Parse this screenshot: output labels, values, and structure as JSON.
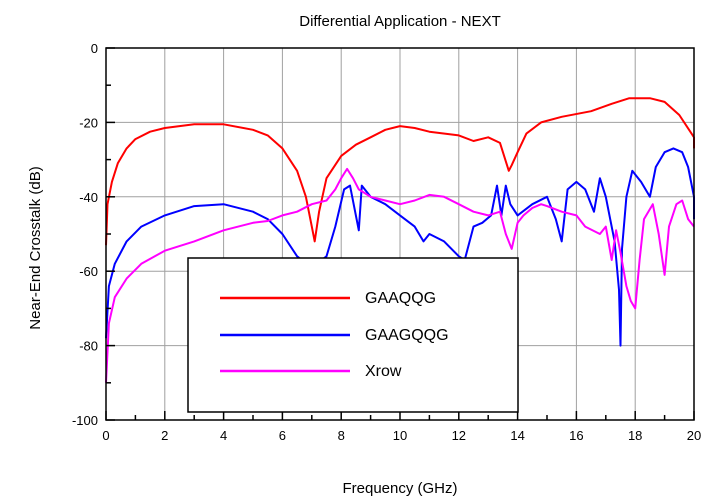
{
  "chart_data": {
    "type": "line",
    "title": "Differential Application - NEXT",
    "xlabel": "Frequency (GHz)",
    "ylabel": "Near-End Crosstalk (dB)",
    "xlim": [
      0,
      20
    ],
    "ylim": [
      -100,
      0
    ],
    "x_ticks": [
      "0",
      "2",
      "4",
      "6",
      "8",
      "10",
      "12",
      "14",
      "16",
      "18",
      "20"
    ],
    "y_ticks": [
      "0",
      "-20",
      "-40",
      "-60",
      "-80",
      "-100"
    ],
    "grid": true,
    "legend": "lower-left",
    "series": [
      {
        "name": "GAAQQG",
        "color": "#ff0000",
        "points": [
          [
            0,
            -53
          ],
          [
            0.05,
            -42
          ],
          [
            0.2,
            -36
          ],
          [
            0.4,
            -31
          ],
          [
            0.7,
            -27
          ],
          [
            1,
            -24.5
          ],
          [
            1.5,
            -22.5
          ],
          [
            2,
            -21.5
          ],
          [
            3,
            -20.5
          ],
          [
            4,
            -20.5
          ],
          [
            5,
            -22
          ],
          [
            5.5,
            -23.5
          ],
          [
            6,
            -27
          ],
          [
            6.5,
            -33
          ],
          [
            6.8,
            -40
          ],
          [
            7,
            -48
          ],
          [
            7.1,
            -52
          ],
          [
            7.25,
            -44
          ],
          [
            7.5,
            -35
          ],
          [
            8,
            -29
          ],
          [
            8.5,
            -26
          ],
          [
            9,
            -24
          ],
          [
            9.5,
            -22
          ],
          [
            10,
            -21
          ],
          [
            10.5,
            -21.5
          ],
          [
            11,
            -22.5
          ],
          [
            12,
            -23.5
          ],
          [
            12.5,
            -25
          ],
          [
            13,
            -24
          ],
          [
            13.4,
            -25.5
          ],
          [
            13.7,
            -33
          ],
          [
            13.8,
            -31.5
          ],
          [
            14,
            -28
          ],
          [
            14.3,
            -23
          ],
          [
            14.8,
            -20
          ],
          [
            15.5,
            -18.5
          ],
          [
            16.5,
            -17
          ],
          [
            17.2,
            -15
          ],
          [
            17.8,
            -13.5
          ],
          [
            18.5,
            -13.5
          ],
          [
            19,
            -14.5
          ],
          [
            19.5,
            -18
          ],
          [
            20,
            -24
          ],
          [
            20,
            -27
          ]
        ]
      },
      {
        "name": "GAAGQQG",
        "color": "#0000ff",
        "points": [
          [
            0,
            -78
          ],
          [
            0.1,
            -64
          ],
          [
            0.3,
            -58
          ],
          [
            0.7,
            -52
          ],
          [
            1.2,
            -48
          ],
          [
            2,
            -45
          ],
          [
            3,
            -42.5
          ],
          [
            4,
            -42
          ],
          [
            5,
            -44
          ],
          [
            5.5,
            -46
          ],
          [
            6,
            -50
          ],
          [
            6.5,
            -56
          ],
          [
            7,
            -59
          ],
          [
            7.5,
            -56
          ],
          [
            7.8,
            -48
          ],
          [
            8.1,
            -38
          ],
          [
            8.3,
            -37
          ],
          [
            8.6,
            -49
          ],
          [
            8.7,
            -37
          ],
          [
            9,
            -40
          ],
          [
            9.5,
            -42
          ],
          [
            10,
            -45
          ],
          [
            10.5,
            -48
          ],
          [
            10.8,
            -52
          ],
          [
            11,
            -50
          ],
          [
            11.5,
            -52
          ],
          [
            12,
            -56
          ],
          [
            12.2,
            -57
          ],
          [
            12.5,
            -48
          ],
          [
            12.8,
            -47
          ],
          [
            13.1,
            -45
          ],
          [
            13.3,
            -37
          ],
          [
            13.45,
            -45
          ],
          [
            13.6,
            -37
          ],
          [
            13.75,
            -42
          ],
          [
            14,
            -45
          ],
          [
            14.5,
            -42
          ],
          [
            15,
            -40
          ],
          [
            15.3,
            -46
          ],
          [
            15.5,
            -52
          ],
          [
            15.7,
            -38
          ],
          [
            16,
            -36
          ],
          [
            16.3,
            -38
          ],
          [
            16.6,
            -44
          ],
          [
            16.8,
            -35
          ],
          [
            17,
            -40
          ],
          [
            17.3,
            -52
          ],
          [
            17.45,
            -65
          ],
          [
            17.5,
            -80
          ],
          [
            17.55,
            -54
          ],
          [
            17.7,
            -40
          ],
          [
            17.9,
            -33
          ],
          [
            18.2,
            -36
          ],
          [
            18.5,
            -40
          ],
          [
            18.7,
            -32
          ],
          [
            19,
            -28
          ],
          [
            19.3,
            -27
          ],
          [
            19.6,
            -28
          ],
          [
            19.8,
            -32
          ],
          [
            20,
            -40
          ],
          [
            20,
            -46
          ]
        ]
      },
      {
        "name": "Xrow",
        "color": "#ff00ff",
        "points": [
          [
            0,
            -90
          ],
          [
            0.1,
            -74
          ],
          [
            0.3,
            -67
          ],
          [
            0.7,
            -62
          ],
          [
            1.2,
            -58
          ],
          [
            2,
            -54.5
          ],
          [
            3,
            -52
          ],
          [
            4,
            -49
          ],
          [
            5,
            -47
          ],
          [
            5.5,
            -46.5
          ],
          [
            6,
            -45
          ],
          [
            6.5,
            -44
          ],
          [
            7,
            -42
          ],
          [
            7.5,
            -41
          ],
          [
            7.8,
            -38
          ],
          [
            8,
            -35
          ],
          [
            8.2,
            -32.5
          ],
          [
            8.4,
            -35
          ],
          [
            8.6,
            -38
          ],
          [
            9,
            -40
          ],
          [
            9.5,
            -41
          ],
          [
            10,
            -42
          ],
          [
            10.5,
            -41
          ],
          [
            11,
            -39.5
          ],
          [
            11.5,
            -40
          ],
          [
            12,
            -42
          ],
          [
            12.5,
            -44
          ],
          [
            13,
            -45
          ],
          [
            13.4,
            -44
          ],
          [
            13.6,
            -50
          ],
          [
            13.8,
            -54
          ],
          [
            14,
            -47
          ],
          [
            14.2,
            -45
          ],
          [
            14.5,
            -43
          ],
          [
            14.8,
            -42
          ],
          [
            15,
            -42.5
          ],
          [
            15.5,
            -44
          ],
          [
            16,
            -45
          ],
          [
            16.3,
            -48
          ],
          [
            16.8,
            -50
          ],
          [
            17,
            -48
          ],
          [
            17.2,
            -57
          ],
          [
            17.35,
            -49
          ],
          [
            17.5,
            -55
          ],
          [
            17.7,
            -64
          ],
          [
            17.85,
            -68
          ],
          [
            18,
            -70
          ],
          [
            18.15,
            -57
          ],
          [
            18.3,
            -46
          ],
          [
            18.6,
            -42
          ],
          [
            18.8,
            -50
          ],
          [
            19,
            -61
          ],
          [
            19.15,
            -48
          ],
          [
            19.4,
            -42
          ],
          [
            19.6,
            -41
          ],
          [
            19.8,
            -46
          ],
          [
            20,
            -48
          ]
        ]
      }
    ]
  }
}
